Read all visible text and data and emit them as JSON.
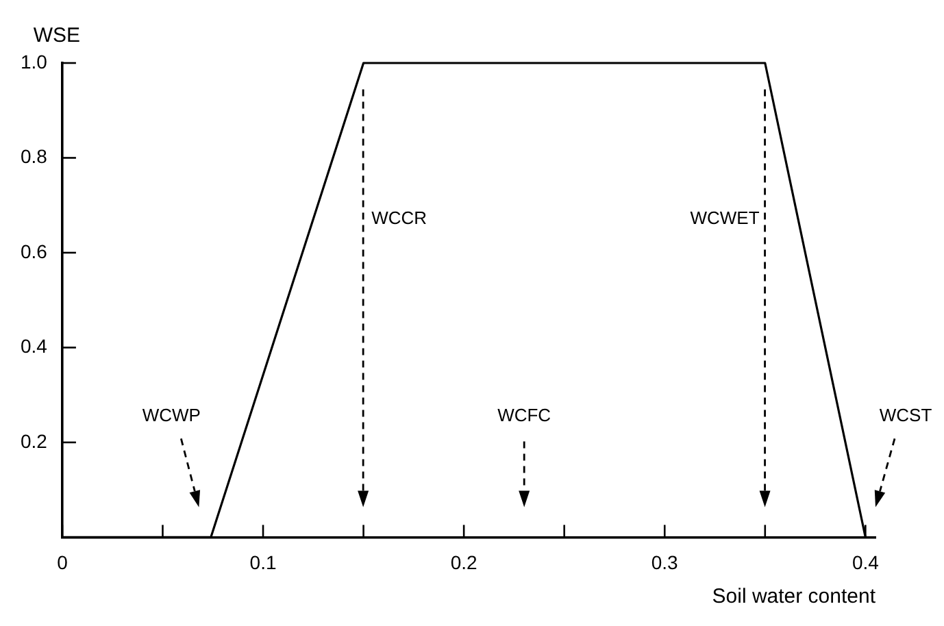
{
  "chart_data": {
    "type": "line",
    "xlabel": "Soil water content",
    "ylabel": "WSE",
    "x": [
      0,
      0.074,
      0.15,
      0.35,
      0.4
    ],
    "series": [
      {
        "color": "#000000",
        "values": [
          0,
          0,
          1,
          1,
          0
        ]
      }
    ],
    "xlim": [
      0,
      0.405
    ],
    "ylim": [
      0,
      1.0
    ],
    "xticks": [
      0,
      {
        "value": 0.05,
        "label": null
      },
      0.1,
      {
        "value": 0.15,
        "label": null
      },
      0.2,
      {
        "value": 0.25,
        "label": null
      },
      0.3,
      {
        "value": 0.35,
        "label": null
      },
      0.4
    ],
    "yticks": [
      0.2,
      0.4,
      0.6,
      0.8,
      {
        "value": 1.0,
        "label": "1.0"
      }
    ],
    "marker": "none",
    "line_style": "solid",
    "annotations": [
      "WCWP",
      "WCCR",
      "WCFC",
      "WCWET",
      "WCST"
    ]
  }
}
